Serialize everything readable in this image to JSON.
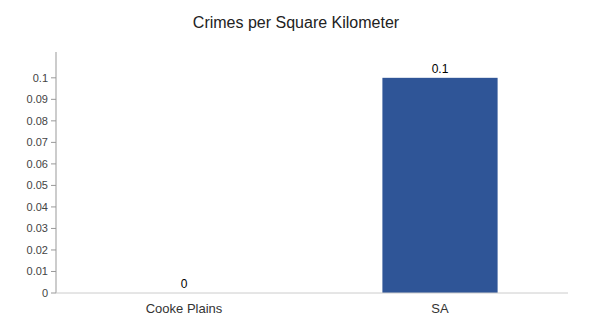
{
  "chart_data": {
    "type": "bar",
    "title": "Crimes per Square Kilometer",
    "categories": [
      "Cooke Plains",
      "SA"
    ],
    "values": [
      0,
      0.1
    ],
    "color": "#2f5597",
    "ylim": [
      0,
      0.112
    ],
    "yticks": [
      0,
      0.01,
      0.02,
      0.03,
      0.04,
      0.05,
      0.06,
      0.07,
      0.08,
      0.09,
      0.1
    ],
    "grid": false,
    "data_labels": true
  }
}
